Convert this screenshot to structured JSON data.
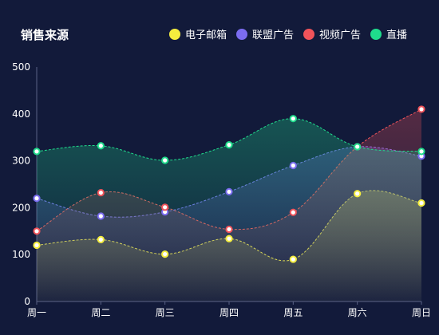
{
  "header": {
    "title": "销售来源"
  },
  "chart_data": {
    "type": "area",
    "categories": [
      "周一",
      "周二",
      "周三",
      "周四",
      "周五",
      "周六",
      "周日"
    ],
    "ylim": [
      0,
      500
    ],
    "yticks": [
      0,
      100,
      200,
      300,
      400,
      500
    ],
    "grid": false,
    "legend_position": "top-right",
    "series": [
      {
        "name": "电子邮箱",
        "color": "#f4ed3e",
        "values": [
          120,
          132,
          101,
          134,
          90,
          230,
          210
        ]
      },
      {
        "name": "联盟广告",
        "color": "#7b6cf0",
        "values": [
          220,
          182,
          191,
          234,
          290,
          330,
          310
        ]
      },
      {
        "name": "视频广告",
        "color": "#f0535a",
        "values": [
          150,
          232,
          201,
          154,
          190,
          330,
          410
        ]
      },
      {
        "name": "直播",
        "color": "#1fdc8c",
        "values": [
          320,
          332,
          301,
          334,
          390,
          330,
          320
        ]
      }
    ]
  }
}
